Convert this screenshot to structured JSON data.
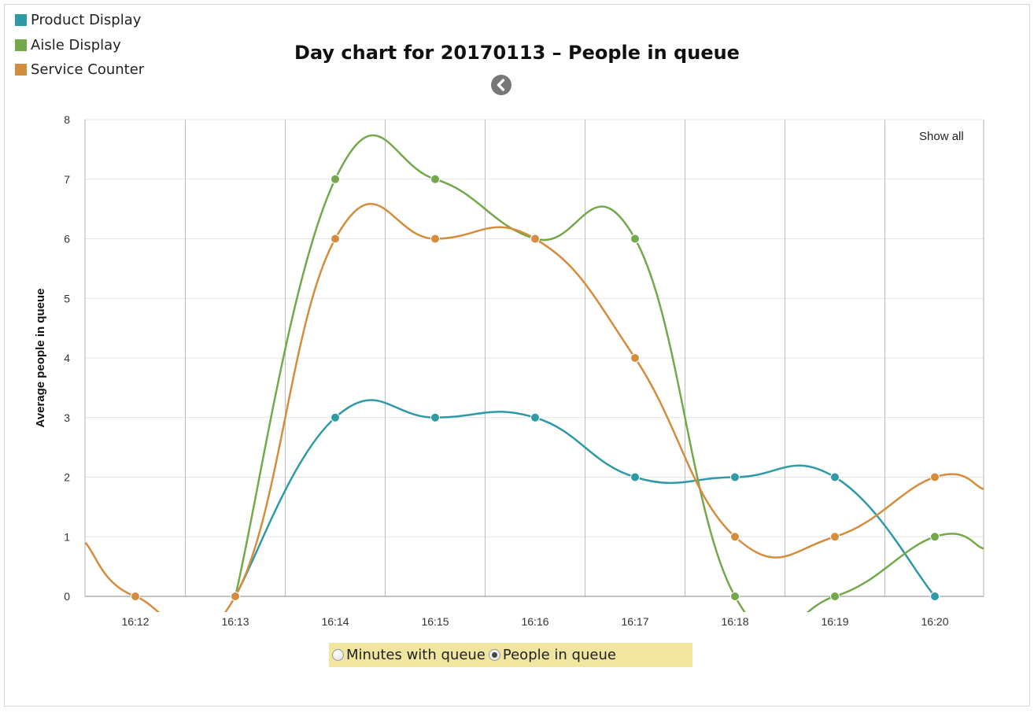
{
  "legend": [
    {
      "label": "Product Display",
      "color": "#2e9aa5"
    },
    {
      "label": "Aisle Display",
      "color": "#73a94a"
    },
    {
      "label": "Service Counter",
      "color": "#d38d3c"
    }
  ],
  "back_icon": "chevron-left-icon",
  "show_all_label": "Show all",
  "toggle": {
    "options": [
      {
        "label": "Minutes with queue",
        "selected": false
      },
      {
        "label": "People in queue",
        "selected": true
      }
    ]
  },
  "chart_data": {
    "type": "line",
    "title": "Day chart for 20170113 – People in queue",
    "ylabel": "Average people in queue",
    "xlabel": "",
    "categories": [
      "16:12",
      "16:13",
      "16:14",
      "16:15",
      "16:16",
      "16:17",
      "16:18",
      "16:19",
      "16:20"
    ],
    "ylim": [
      0,
      8
    ],
    "yticks": [
      0,
      1,
      2,
      3,
      4,
      5,
      6,
      7,
      8
    ],
    "grid": true,
    "series": [
      {
        "name": "Product Display",
        "color": "#2e9aa5",
        "values": [
          null,
          0,
          3,
          3,
          3,
          2,
          2,
          2,
          0
        ]
      },
      {
        "name": "Aisle Display",
        "color": "#73a94a",
        "values": [
          null,
          0,
          7,
          7,
          6,
          6,
          0,
          0,
          1
        ],
        "trailing": 0.8
      },
      {
        "name": "Service Counter",
        "color": "#d38d3c",
        "values": [
          0,
          0,
          6,
          6,
          6,
          4,
          1,
          1,
          2
        ],
        "leading": 0.9,
        "trailing": 1.8
      }
    ]
  }
}
